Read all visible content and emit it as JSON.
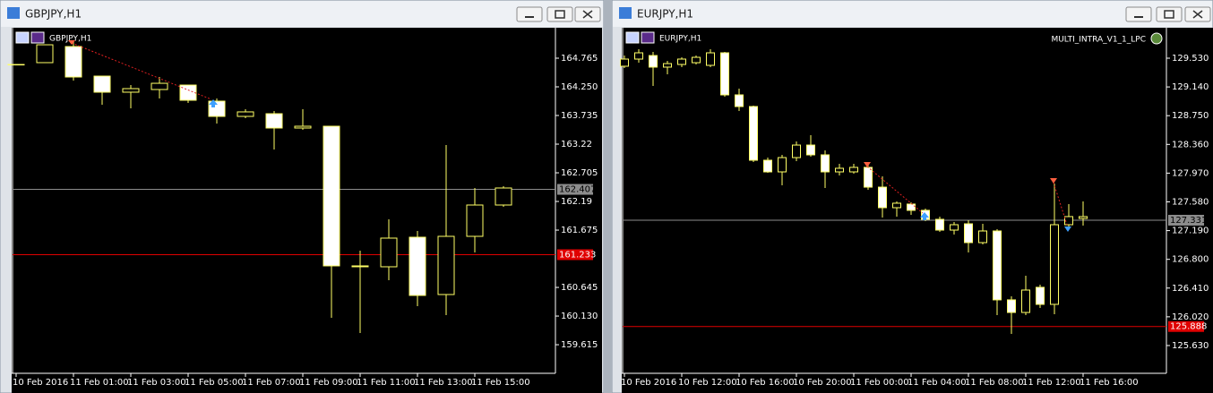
{
  "chart_data": [
    {
      "type": "candlestick",
      "window_title": "GBPJPY,H1",
      "symbol_label": "GBPJPY,H1",
      "categories": [
        "10 Feb 2016",
        null,
        "11 Feb 01:00",
        null,
        "11 Feb 03:00",
        null,
        "11 Feb 05:00",
        null,
        "11 Feb 07:00",
        null,
        "11 Feb 09:00",
        null,
        "11 Feb 11:00",
        null,
        "11 Feb 13:00",
        null,
        "11 Feb 15:00",
        null
      ],
      "open": [
        164.652,
        164.685,
        164.974,
        164.443,
        164.154,
        164.202,
        164.282,
        163.993,
        163.719,
        163.767,
        163.51,
        163.542,
        161.032,
        161.016,
        161.547,
        160.517,
        161.563,
        162.126
      ],
      "high": [
        164.652,
        165.006,
        165.087,
        164.443,
        164.282,
        164.427,
        164.282,
        164.041,
        163.848,
        163.816,
        163.848,
        163.542,
        161.306,
        161.869,
        161.66,
        163.204,
        162.432,
        162.464
      ],
      "low": [
        164.652,
        164.685,
        164.363,
        163.928,
        163.864,
        164.041,
        163.961,
        163.59,
        163.687,
        163.124,
        163.478,
        160.099,
        159.825,
        160.775,
        160.308,
        160.147,
        161.274,
        162.094
      ],
      "close": [
        164.652,
        165.006,
        164.427,
        164.154,
        164.218,
        164.314,
        164.009,
        163.719,
        163.8,
        163.51,
        163.542,
        161.032,
        161.016,
        161.531,
        160.501,
        161.563,
        162.126,
        162.432
      ],
      "ylim": [
        159.101,
        165.28
      ],
      "yticks": [
        164.765,
        {
          "value": 164.25,
          "label": "164.250"
        },
        163.735,
        163.22,
        162.705,
        162.19,
        161.675,
        160.645,
        {
          "value": 160.13,
          "label": "160.130"
        },
        159.615
      ],
      "price_lines": [
        {
          "value": 162.407,
          "color": "#8c8c8c"
        },
        {
          "value": 161.233,
          "color": "#e00000"
        }
      ],
      "color": "#ffff66",
      "bull_fill": "#000000",
      "bear_fill": "#ffffff",
      "grid": false
    },
    {
      "type": "candlestick",
      "window_title": "EURJPY,H1",
      "symbol_label": "EURJPY,H1",
      "indicator": "MULTI_INTRA_V1_1_LPC",
      "categories": [
        "10 Feb 2016",
        null,
        null,
        null,
        "10 Feb 12:00",
        null,
        null,
        null,
        "10 Feb 16:00",
        null,
        null,
        null,
        "10 Feb 20:00",
        null,
        null,
        null,
        "11 Feb 00:00",
        null,
        null,
        null,
        "11 Feb 04:00",
        null,
        null,
        null,
        "11 Feb 08:00",
        null,
        null,
        null,
        "11 Feb 12:00",
        null,
        null,
        null,
        "11 Feb 16:00"
      ],
      "open": [
        129.421,
        129.518,
        129.566,
        129.409,
        129.445,
        129.469,
        129.433,
        129.603,
        129.032,
        128.874,
        128.145,
        127.987,
        128.181,
        128.351,
        128.218,
        127.987,
        127.987,
        128.048,
        127.78,
        127.501,
        127.55,
        127.465,
        127.343,
        127.197,
        127.282,
        127.027,
        127.185,
        126.25,
        126.079,
        126.42,
        126.189,
        127.27,
        127.355
      ],
      "high": [
        129.566,
        129.652,
        129.615,
        129.494,
        129.542,
        129.566,
        129.652,
        129.615,
        129.117,
        128.886,
        128.181,
        128.218,
        128.4,
        128.485,
        128.279,
        128.096,
        128.096,
        128.096,
        127.926,
        127.586,
        127.574,
        127.489,
        127.38,
        127.307,
        127.331,
        127.282,
        127.209,
        126.298,
        126.578,
        126.456,
        127.829,
        127.55,
        127.586
      ],
      "low": [
        129.396,
        129.469,
        129.153,
        129.311,
        129.409,
        129.445,
        129.409,
        129.008,
        128.813,
        128.121,
        127.975,
        127.805,
        128.133,
        128.194,
        127.768,
        127.938,
        127.963,
        127.744,
        127.367,
        127.38,
        127.404,
        127.319,
        127.173,
        127.137,
        126.894,
        127.003,
        126.043,
        125.788,
        126.043,
        126.14,
        126.055,
        127.222,
        127.258
      ],
      "close": [
        129.518,
        129.603,
        129.409,
        129.457,
        129.518,
        129.542,
        129.603,
        129.032,
        128.874,
        128.145,
        127.987,
        128.181,
        128.351,
        128.218,
        127.987,
        128.036,
        128.048,
        127.78,
        127.501,
        127.562,
        127.465,
        127.343,
        127.197,
        127.27,
        127.027,
        127.185,
        126.25,
        126.079,
        126.383,
        126.189,
        127.27,
        127.38,
        127.38
      ],
      "ylim": [
        125.253,
        129.919
      ],
      "yticks": [
        {
          "value": 129.53,
          "label": "129.530"
        },
        {
          "value": 129.14,
          "label": "129.140"
        },
        {
          "value": 128.75,
          "label": "128.750"
        },
        {
          "value": 128.36,
          "label": "128.360"
        },
        {
          "value": 127.97,
          "label": "127.970"
        },
        {
          "value": 127.58,
          "label": "127.580"
        },
        {
          "value": 127.19,
          "label": "127.190"
        },
        {
          "value": 126.8,
          "label": "126.800"
        },
        {
          "value": 126.41,
          "label": "126.410"
        },
        {
          "value": 126.02,
          "label": "126.020"
        },
        {
          "value": 125.63,
          "label": "125.630"
        }
      ],
      "price_lines": [
        {
          "value": 127.331,
          "color": "#8c8c8c"
        },
        {
          "value": 125.888,
          "color": "#e00000"
        }
      ],
      "color": "#ffff66",
      "bull_fill": "#000000",
      "bear_fill": "#ffffff",
      "grid": false
    }
  ]
}
